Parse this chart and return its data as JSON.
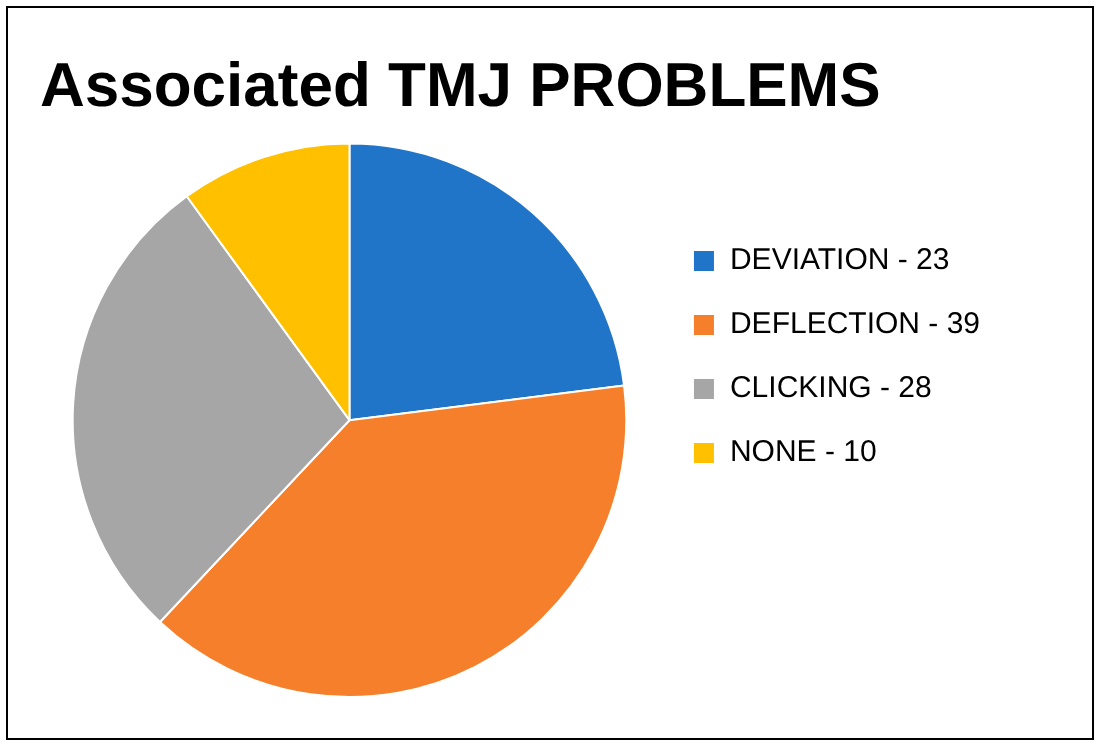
{
  "chart_data": {
    "type": "pie",
    "title": "Associated TMJ PROBLEMS",
    "categories": [
      "DEVIATION - 23",
      "DEFLECTION - 39",
      "CLICKING - 28",
      "NONE - 10"
    ],
    "values": [
      23,
      39,
      28,
      10
    ],
    "colors": [
      "#2175c9",
      "#f57f2a",
      "#a6a6a6",
      "#ffc000"
    ],
    "legend": "right"
  }
}
